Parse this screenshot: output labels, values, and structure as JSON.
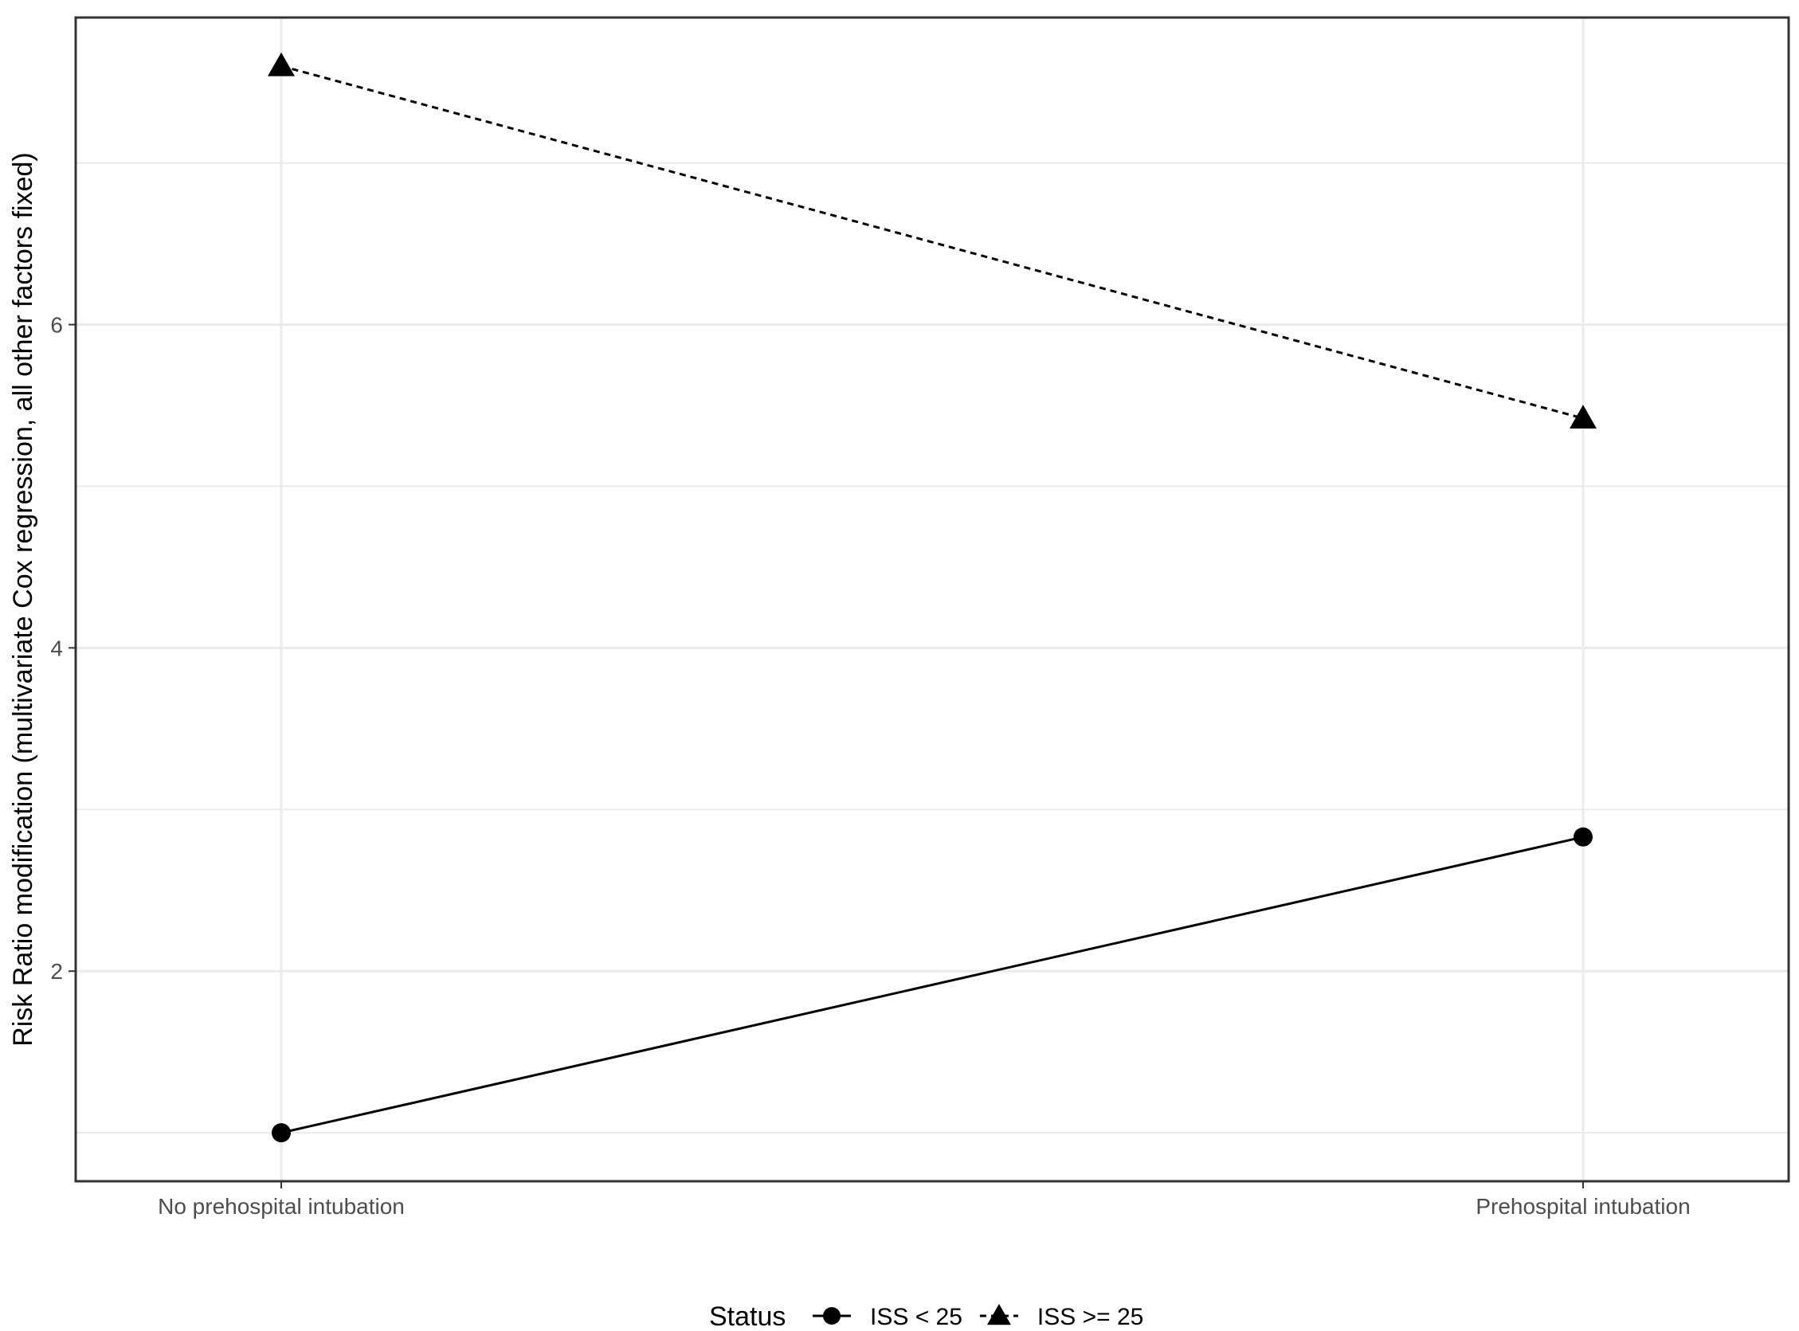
{
  "chart_data": {
    "type": "line",
    "categories": [
      "No prehospital intubation",
      "Prehospital intubation"
    ],
    "ylabel": "Risk Ratio modification (multivariate Cox regression, all other factors fixed)",
    "ylim": [
      0.7,
      7.9
    ],
    "yticks": [
      2,
      4,
      6
    ],
    "grid": true,
    "legend": {
      "title": "Status",
      "placement": "bottom"
    },
    "series": [
      {
        "name": "ISS < 25",
        "values": [
          1.0,
          2.83
        ],
        "marker": "circle",
        "line_style": "solid"
      },
      {
        "name": "ISS >= 25",
        "values": [
          7.6,
          5.42
        ],
        "marker": "triangle",
        "line_style": "dashed"
      }
    ]
  }
}
